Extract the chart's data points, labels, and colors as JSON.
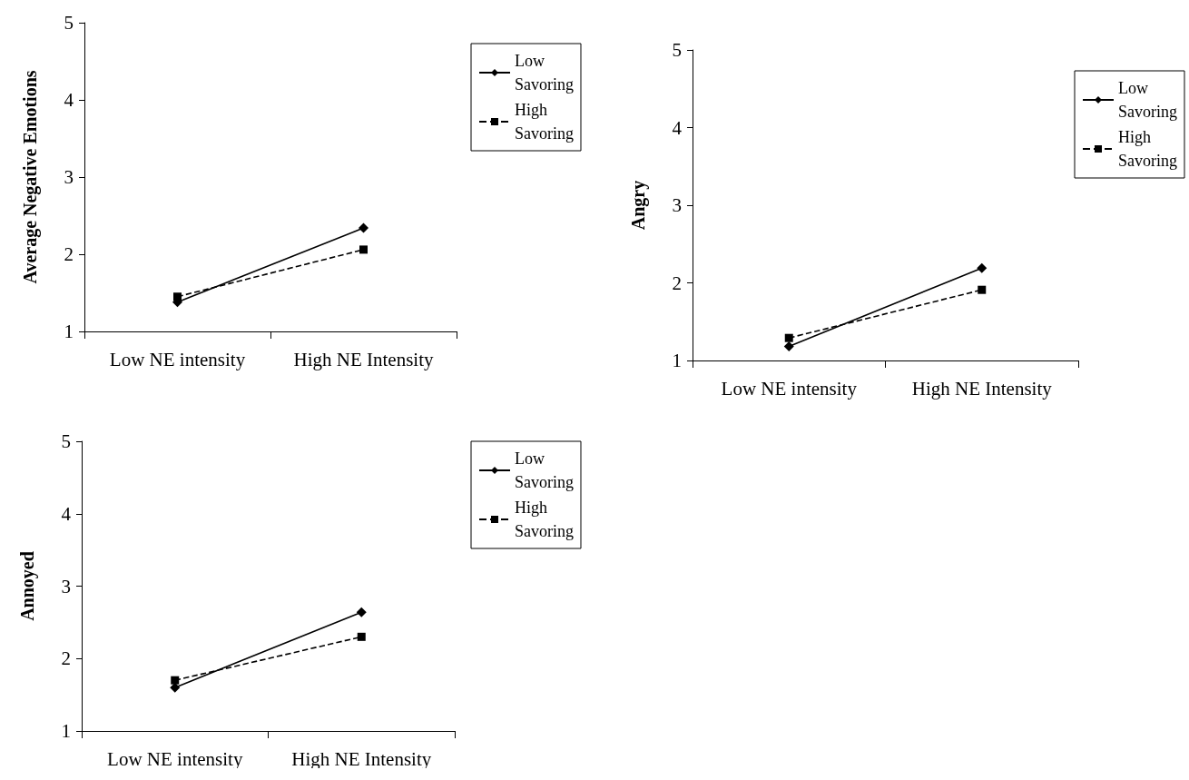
{
  "chart_data": [
    {
      "type": "line",
      "ylabel": "Average Negative Emotions",
      "categories": [
        "Low NE intensity",
        "High NE Intensity"
      ],
      "series": [
        {
          "name": "Low Savoring",
          "color": "#000000",
          "values": [
            1.38,
            2.34
          ],
          "marker": "diamond",
          "line_style": "solid"
        },
        {
          "name": "High Savoring",
          "color": "#000000",
          "values": [
            1.45,
            2.06
          ],
          "marker": "square",
          "line_style": "dashed"
        }
      ],
      "ylim": [
        1,
        5
      ],
      "yticks": [
        1,
        2,
        3,
        4,
        5
      ],
      "grid": false,
      "legend": "top right"
    },
    {
      "type": "line",
      "ylabel": "Angry",
      "categories": [
        "Low NE intensity",
        "High NE Intensity"
      ],
      "series": [
        {
          "name": "Low Savoring",
          "color": "#000000",
          "values": [
            1.18,
            2.19
          ],
          "marker": "diamond",
          "line_style": "solid"
        },
        {
          "name": "High Savoring",
          "color": "#000000",
          "values": [
            1.29,
            1.91
          ],
          "marker": "square",
          "line_style": "dashed"
        }
      ],
      "ylim": [
        1,
        5
      ],
      "yticks": [
        1,
        2,
        3,
        4,
        5
      ],
      "grid": false,
      "legend": "top right"
    },
    {
      "type": "line",
      "ylabel": "Annoyed",
      "categories": [
        "Low NE intensity",
        "High NE Intensity"
      ],
      "series": [
        {
          "name": "Low Savoring",
          "color": "#000000",
          "values": [
            1.6,
            2.64
          ],
          "marker": "diamond",
          "line_style": "solid"
        },
        {
          "name": "High Savoring",
          "color": "#000000",
          "values": [
            1.7,
            2.3
          ],
          "marker": "square",
          "line_style": "dashed"
        }
      ],
      "ylim": [
        1,
        5
      ],
      "yticks": [
        1,
        2,
        3,
        4,
        5
      ],
      "grid": false,
      "legend": "top right"
    }
  ]
}
